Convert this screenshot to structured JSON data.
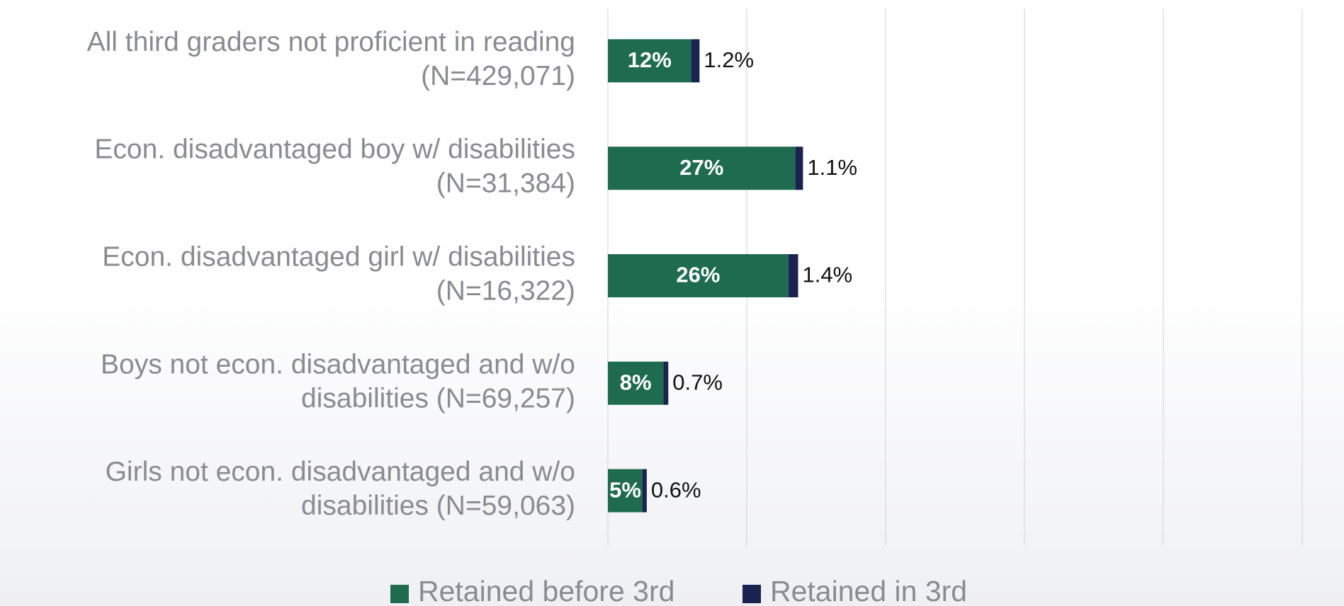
{
  "chart_data": {
    "type": "stacked_barh",
    "categories": [
      "All third graders not proficient in reading\n(N=429,071)",
      "Econ. disadvantaged boy w/ disabilities\n(N=31,384)",
      "Econ. disadvantaged girl w/ disabilities\n(N=16,322)",
      "Boys not econ. disadvantaged and w/o\ndisabilities (N=69,257)",
      "Girls not econ. disadvantaged and w/o\ndisabilities (N=59,063)"
    ],
    "series": [
      {
        "name": "Retained before 3rd",
        "color": "#1e6b50",
        "values": [
          12,
          27,
          26,
          8,
          5
        ],
        "value_labels": [
          "12%",
          "27%",
          "26%",
          "8%",
          "5%"
        ]
      },
      {
        "name": "Retained in 3rd",
        "color": "#1a2350",
        "values": [
          1.2,
          1.1,
          1.4,
          0.7,
          0.6
        ],
        "value_labels": [
          "1.2%",
          "1.1%",
          "1.4%",
          "0.7%",
          "0.6%"
        ]
      }
    ],
    "xlim": [
      0,
      100
    ],
    "xticks": [
      0,
      20,
      40,
      60,
      80,
      100
    ],
    "grid": true,
    "legend": "bottom"
  }
}
